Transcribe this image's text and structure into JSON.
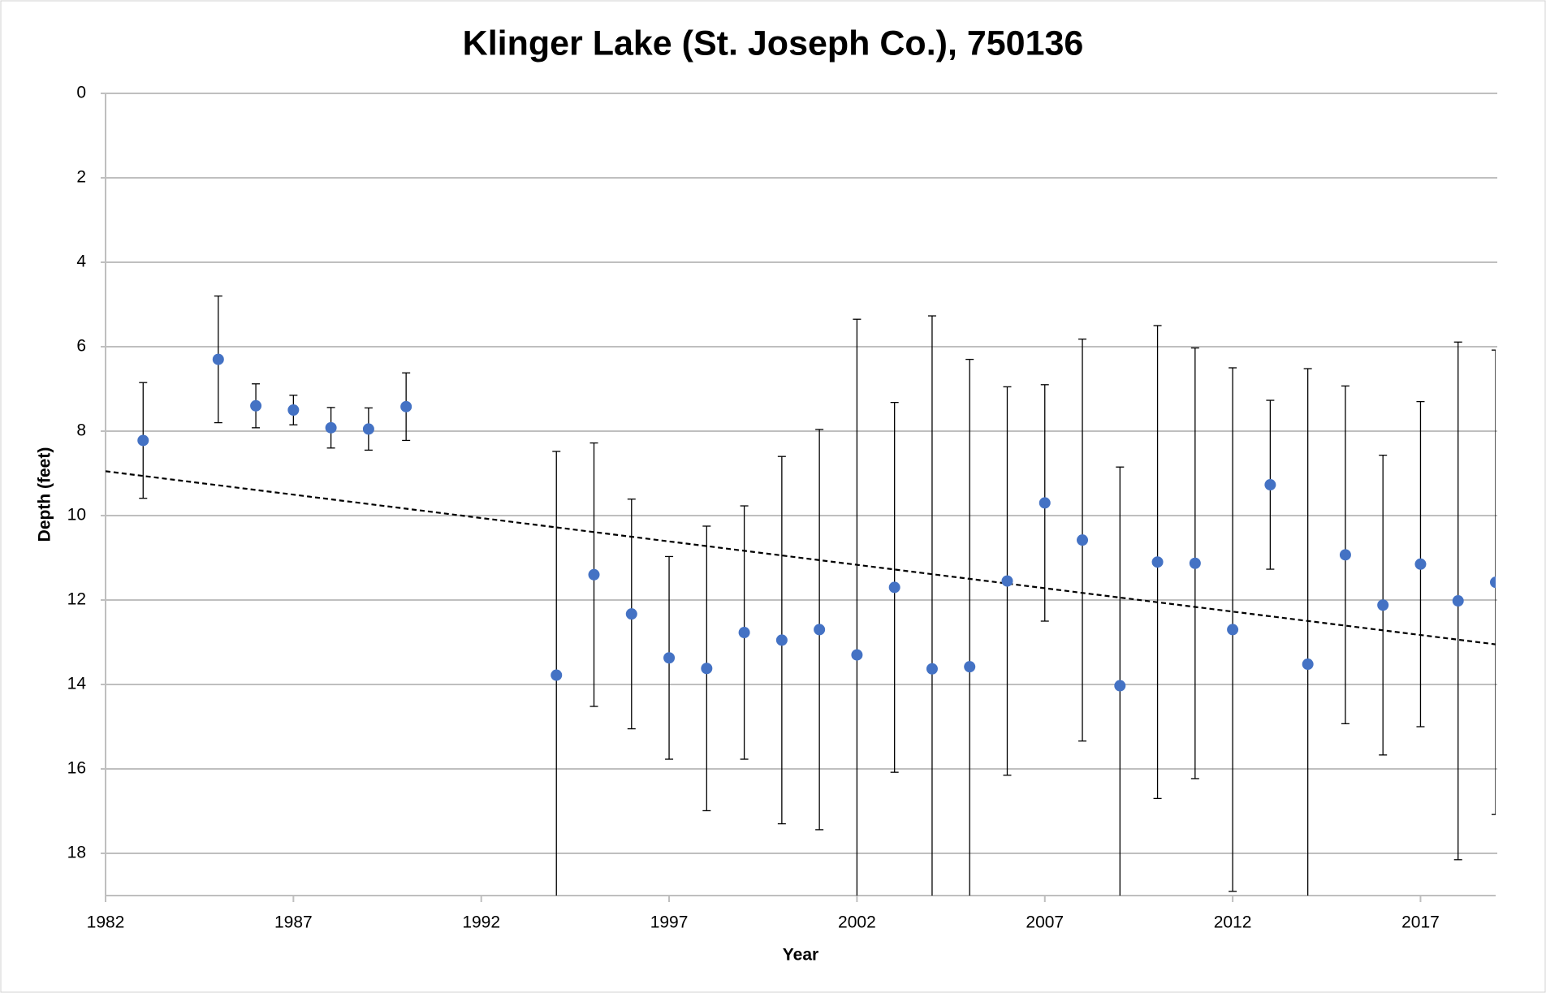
{
  "chart_data": {
    "type": "scatter",
    "title": "Klinger Lake (St. Joseph Co.), 750136",
    "x_label": "Year",
    "y_label": "Depth (feet)",
    "xlim": [
      1982,
      2019
    ],
    "xticks": [
      1982,
      1987,
      1992,
      1997,
      2002,
      2007,
      2012,
      2017
    ],
    "ylim": [
      0,
      19
    ],
    "yticks": [
      0,
      2,
      4,
      6,
      8,
      10,
      12,
      14,
      16,
      18
    ],
    "y_inverted": true,
    "grid": true,
    "series": [
      {
        "color": "#4472c4",
        "x": [
          1983,
          1985,
          1986,
          1987,
          1988,
          1989,
          1990,
          1994,
          1995,
          1996,
          1997,
          1998,
          1999,
          2000,
          2001,
          2002,
          2003,
          2004,
          2005,
          2006,
          2007,
          2008,
          2009,
          2010,
          2011,
          2012,
          2013,
          2014,
          2015,
          2016,
          2017,
          2018,
          2019
        ],
        "values": [
          8.22,
          6.3,
          7.4,
          7.5,
          7.92,
          7.95,
          7.42,
          13.78,
          11.4,
          12.33,
          13.37,
          13.62,
          12.77,
          12.95,
          12.7,
          13.3,
          11.7,
          13.63,
          13.58,
          11.55,
          9.7,
          10.58,
          14.03,
          11.1,
          11.13,
          12.7,
          9.27,
          13.52,
          10.93,
          12.12,
          11.15,
          12.02,
          11.58
        ],
        "errors": [
          1.37,
          1.5,
          0.52,
          0.35,
          0.48,
          0.5,
          0.8,
          5.3,
          3.12,
          2.72,
          2.4,
          3.37,
          3.0,
          4.35,
          4.74,
          7.95,
          4.38,
          8.36,
          7.28,
          4.6,
          2.8,
          4.76,
          5.18,
          5.6,
          5.1,
          6.2,
          2.0,
          7.0,
          4.0,
          3.55,
          3.85,
          6.13,
          5.5
        ]
      }
    ],
    "trendline": {
      "color": "#000000",
      "x": [
        1982,
        2019
      ],
      "values": [
        8.95,
        13.05
      ]
    }
  }
}
